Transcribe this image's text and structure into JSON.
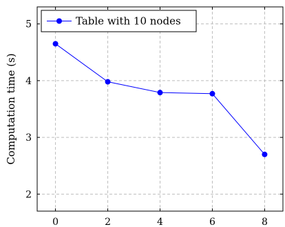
{
  "chart_data": {
    "type": "line",
    "x": [
      0,
      2,
      4,
      6,
      8
    ],
    "series": [
      {
        "name": "Table with 10 nodes",
        "values": [
          4.65,
          3.98,
          3.79,
          3.77,
          2.7
        ],
        "color": "#0000ff"
      }
    ],
    "xlabel": "",
    "ylabel": "Computation time (s)",
    "xlim": [
      -0.7,
      8.7
    ],
    "ylim": [
      1.7,
      5.3
    ],
    "xticks": [
      0,
      2,
      4,
      6,
      8
    ],
    "yticks": [
      2,
      3,
      4,
      5
    ],
    "grid": true,
    "grid_style": "dashed",
    "legend_position": "top-left"
  }
}
